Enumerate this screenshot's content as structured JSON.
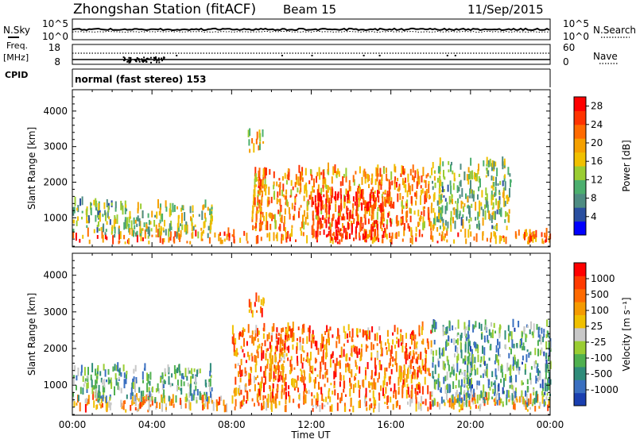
{
  "header": {
    "station": "Zhongshan Station (fitACF)",
    "beam": "Beam 15",
    "date": "11/Sep/2015"
  },
  "noise_panel": {
    "left_label": "N.Sky",
    "left_ticks": [
      "10^5",
      "10^0"
    ],
    "right_ticks": [
      "10^5",
      "10^0"
    ],
    "right_label": "N.Search"
  },
  "freq_panel": {
    "left_label_1": "Freq.",
    "left_label_2": "[MHz]",
    "left_ticks": [
      "18",
      "8"
    ],
    "right_ticks": [
      "60",
      "0"
    ],
    "right_label": "Nave"
  },
  "cpid_panel": {
    "label": "CPID",
    "text": "normal (fast stereo) 153"
  },
  "colors": {
    "power_scale": [
      "#0000ff",
      "#2a4fa0",
      "#4e8c82",
      "#4caf6e",
      "#9acd32",
      "#f0c000",
      "#f5a000",
      "#ff6a00",
      "#ff3300",
      "#ff0000"
    ],
    "velocity_scale": [
      "#1a3fb0",
      "#3a6fc0",
      "#2f8c7a",
      "#4fb04f",
      "#9acd32",
      "#c8c8c8",
      "#f0c000",
      "#f59a00",
      "#ff6a00",
      "#ff3a00",
      "#ff0000"
    ]
  },
  "chart_data": [
    {
      "type": "heatmap",
      "name": "power",
      "xlabel": "Time UT",
      "ylabel": "Slant Range [km]",
      "x_ticks": [
        "00:00",
        "04:00",
        "08:00",
        "12:00",
        "16:00",
        "20:00",
        "00:00"
      ],
      "y_ticks": [
        1000,
        2000,
        3000,
        4000
      ],
      "ylim": [
        180,
        4600
      ],
      "xlim_hours": [
        0,
        24
      ],
      "colorbar": {
        "label": "Power [dB]",
        "ticks": [
          4,
          8,
          12,
          16,
          20,
          24,
          28
        ],
        "range": [
          0,
          30
        ]
      },
      "features": [
        {
          "t_start": 0,
          "t_end": 24,
          "range_min": 250,
          "range_max": 500,
          "level": 0.75
        },
        {
          "t_start": 0,
          "t_end": 2,
          "range_min": 500,
          "range_max": 1400,
          "level": 0.35
        },
        {
          "t_start": 2,
          "t_end": 7,
          "range_min": 400,
          "range_max": 1300,
          "level": 0.45
        },
        {
          "t_start": 9,
          "t_end": 18,
          "range_min": 600,
          "range_max": 2300,
          "level": 0.7
        },
        {
          "t_start": 12,
          "t_end": 16,
          "range_min": 300,
          "range_max": 1600,
          "level": 0.95
        },
        {
          "t_start": 8.8,
          "t_end": 9.6,
          "range_min": 2800,
          "range_max": 3300,
          "level": 0.55
        },
        {
          "t_start": 18,
          "t_end": 22,
          "range_min": 600,
          "range_max": 2500,
          "level": 0.4
        }
      ]
    },
    {
      "type": "heatmap",
      "name": "velocity",
      "xlabel": "Time UT",
      "ylabel": "Slant Range [km]",
      "x_ticks": [
        "00:00",
        "04:00",
        "08:00",
        "12:00",
        "16:00",
        "20:00",
        "00:00"
      ],
      "y_ticks": [
        1000,
        2000,
        3000,
        4000
      ],
      "ylim": [
        180,
        4600
      ],
      "xlim_hours": [
        0,
        24
      ],
      "colorbar": {
        "label": "Velocity [m s⁻¹]",
        "ticks": [
          "1000",
          "500",
          "100",
          "25",
          "-25",
          "-100",
          "-500",
          "-1000"
        ]
      },
      "features": [
        {
          "t_start": 0,
          "t_end": 24,
          "range_min": 250,
          "range_max": 600,
          "level": 0.72
        },
        {
          "t_start": 0,
          "t_end": 7,
          "range_min": 500,
          "range_max": 1400,
          "level": 0.3
        },
        {
          "t_start": 8,
          "t_end": 18,
          "range_min": 600,
          "range_max": 2500,
          "level": 0.78
        },
        {
          "t_start": 8.8,
          "t_end": 9.6,
          "range_min": 2800,
          "range_max": 3300,
          "level": 0.8
        },
        {
          "t_start": 18,
          "t_end": 24,
          "range_min": 400,
          "range_max": 2600,
          "level": 0.28
        }
      ]
    }
  ]
}
